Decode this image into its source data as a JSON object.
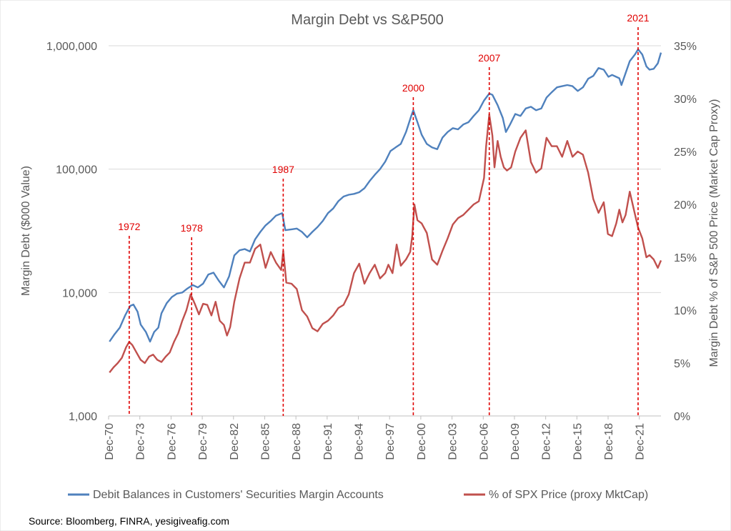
{
  "chart_data": {
    "type": "line",
    "title": "Margin Debt vs S&P500",
    "ylabel_left": "Margin Debt ($000 Value)",
    "ylabel_right": "Margin Debt % of S&P 500 Price (Market Cap Proxy)",
    "x_range": [
      1970.92,
      2024.0
    ],
    "y_left": {
      "scale": "log",
      "range": [
        1000,
        1000000
      ],
      "ticks": [
        1000,
        10000,
        100000,
        1000000
      ],
      "tick_labels": [
        "1,000",
        "10,000",
        "100,000",
        "1,000,000"
      ]
    },
    "y_right": {
      "scale": "linear",
      "range": [
        0,
        35
      ],
      "ticks": [
        0,
        5,
        10,
        15,
        20,
        25,
        30,
        35
      ],
      "tick_labels": [
        "0%",
        "5%",
        "10%",
        "15%",
        "20%",
        "25%",
        "30%",
        "35%"
      ]
    },
    "x_ticks": [
      "Dec-70",
      "Dec-73",
      "Dec-76",
      "Dec-79",
      "Dec-82",
      "Dec-85",
      "Dec-88",
      "Dec-91",
      "Dec-94",
      "Dec-97",
      "Dec-00",
      "Dec-03",
      "Dec-06",
      "Dec-09",
      "Dec-12",
      "Dec-15",
      "Dec-18",
      "Dec-21"
    ],
    "x_tick_years": [
      1970.92,
      1973.92,
      1976.92,
      1979.92,
      1982.92,
      1985.92,
      1988.92,
      1991.92,
      1994.92,
      1997.92,
      2000.92,
      2003.92,
      2006.92,
      2009.92,
      2012.92,
      2015.92,
      2018.92,
      2021.92
    ],
    "events": [
      {
        "label": "1972",
        "x": 1972.9
      },
      {
        "label": "1978",
        "x": 1978.9
      },
      {
        "label": "1987",
        "x": 1987.7
      },
      {
        "label": "2000",
        "x": 2000.2
      },
      {
        "label": "2007",
        "x": 2007.5
      },
      {
        "label": "2021",
        "x": 2021.8
      }
    ],
    "series": [
      {
        "name": "Debit Balances in Customers' Securities Margin Accounts",
        "axis": "left",
        "color": "#4f81bd",
        "x": [
          1971.0,
          1971.5,
          1972.0,
          1972.5,
          1973.0,
          1973.3,
          1973.7,
          1974.0,
          1974.5,
          1974.9,
          1975.3,
          1975.7,
          1976.0,
          1976.5,
          1977.0,
          1977.5,
          1978.0,
          1978.5,
          1979.0,
          1979.5,
          1980.0,
          1980.5,
          1981.0,
          1981.5,
          1982.0,
          1982.5,
          1983.0,
          1983.5,
          1984.0,
          1984.5,
          1985.0,
          1985.5,
          1986.0,
          1986.5,
          1987.0,
          1987.6,
          1987.9,
          1988.5,
          1989.0,
          1989.5,
          1990.0,
          1990.5,
          1991.0,
          1991.5,
          1992.0,
          1992.5,
          1993.0,
          1993.5,
          1994.0,
          1994.5,
          1995.0,
          1995.5,
          1996.0,
          1996.5,
          1997.0,
          1997.5,
          1998.0,
          1998.5,
          1999.0,
          1999.5,
          2000.0,
          2000.2,
          2000.6,
          2001.0,
          2001.5,
          2002.0,
          2002.5,
          2003.0,
          2003.5,
          2004.0,
          2004.5,
          2005.0,
          2005.5,
          2006.0,
          2006.5,
          2007.0,
          2007.5,
          2007.8,
          2008.3,
          2008.8,
          2009.1,
          2009.5,
          2010.0,
          2010.5,
          2011.0,
          2011.5,
          2012.0,
          2012.5,
          2013.0,
          2013.5,
          2014.0,
          2014.5,
          2015.0,
          2015.5,
          2016.0,
          2016.5,
          2017.0,
          2017.5,
          2018.0,
          2018.5,
          2018.95,
          2019.3,
          2019.7,
          2020.0,
          2020.2,
          2020.6,
          2021.0,
          2021.5,
          2021.8,
          2022.2,
          2022.6,
          2022.9,
          2023.3,
          2023.7,
          2024.0
        ],
        "y": [
          4000,
          4600,
          5200,
          6500,
          7800,
          8000,
          7000,
          5500,
          4800,
          4000,
          4800,
          5200,
          6800,
          8200,
          9200,
          9800,
          10000,
          10800,
          11500,
          11000,
          11800,
          14000,
          14500,
          12500,
          11000,
          13500,
          20000,
          22000,
          22500,
          21500,
          27000,
          31000,
          35000,
          38000,
          42000,
          44000,
          32000,
          32500,
          33000,
          31000,
          28000,
          31000,
          34000,
          38000,
          44000,
          48000,
          55000,
          60000,
          62000,
          63000,
          65000,
          70000,
          80000,
          90000,
          100000,
          115000,
          140000,
          150000,
          160000,
          200000,
          270000,
          300000,
          240000,
          190000,
          160000,
          150000,
          145000,
          180000,
          200000,
          215000,
          210000,
          230000,
          240000,
          270000,
          300000,
          360000,
          410000,
          400000,
          330000,
          260000,
          200000,
          230000,
          280000,
          270000,
          310000,
          320000,
          300000,
          310000,
          380000,
          420000,
          460000,
          470000,
          480000,
          470000,
          430000,
          460000,
          540000,
          570000,
          660000,
          640000,
          560000,
          580000,
          560000,
          545000,
          480000,
          600000,
          750000,
          850000,
          935000,
          850000,
          680000,
          640000,
          650000,
          720000,
          880000
        ]
      },
      {
        "name": "% of SPX Price (proxy MktCap)",
        "axis": "right",
        "color": "#c0504d",
        "x": [
          1971.0,
          1971.4,
          1971.8,
          1972.2,
          1972.6,
          1972.9,
          1973.2,
          1973.6,
          1974.0,
          1974.4,
          1974.8,
          1975.2,
          1975.6,
          1976.0,
          1976.4,
          1976.8,
          1977.2,
          1977.6,
          1978.0,
          1978.4,
          1978.8,
          1979.2,
          1979.6,
          1980.0,
          1980.4,
          1980.8,
          1981.2,
          1981.6,
          1982.0,
          1982.3,
          1982.6,
          1983.0,
          1983.5,
          1984.0,
          1984.5,
          1985.0,
          1985.5,
          1986.0,
          1986.5,
          1987.0,
          1987.5,
          1987.7,
          1988.0,
          1988.5,
          1989.0,
          1989.5,
          1990.0,
          1990.5,
          1991.0,
          1991.5,
          1992.0,
          1992.5,
          1993.0,
          1993.5,
          1994.0,
          1994.5,
          1995.0,
          1995.5,
          1996.0,
          1996.5,
          1997.0,
          1997.5,
          1997.8,
          1998.2,
          1998.6,
          1999.0,
          1999.5,
          1999.9,
          2000.1,
          2000.3,
          2000.6,
          2001.0,
          2001.5,
          2002.0,
          2002.5,
          2003.0,
          2003.5,
          2004.0,
          2004.5,
          2005.0,
          2005.5,
          2006.0,
          2006.5,
          2007.0,
          2007.2,
          2007.5,
          2007.8,
          2008.0,
          2008.3,
          2008.6,
          2008.9,
          2009.2,
          2009.6,
          2010.0,
          2010.5,
          2011.0,
          2011.5,
          2012.0,
          2012.5,
          2013.0,
          2013.5,
          2014.0,
          2014.5,
          2015.0,
          2015.5,
          2016.0,
          2016.5,
          2017.0,
          2017.5,
          2018.0,
          2018.5,
          2018.9,
          2019.3,
          2019.7,
          2020.0,
          2020.3,
          2020.6,
          2021.0,
          2021.4,
          2021.8,
          2022.2,
          2022.6,
          2022.9,
          2023.3,
          2023.7,
          2024.0
        ],
        "y": [
          4.1,
          4.6,
          5.0,
          5.5,
          6.5,
          7.0,
          6.7,
          6.0,
          5.3,
          5.0,
          5.6,
          5.8,
          5.3,
          5.1,
          5.6,
          6.0,
          7.0,
          7.8,
          9.0,
          10.0,
          11.5,
          10.6,
          9.6,
          10.6,
          10.5,
          9.5,
          10.8,
          9.0,
          8.6,
          7.6,
          8.4,
          10.8,
          13.0,
          14.5,
          14.5,
          15.8,
          16.2,
          14.0,
          15.5,
          14.5,
          13.8,
          15.6,
          12.6,
          12.5,
          12.0,
          10.0,
          9.4,
          8.3,
          8.0,
          8.7,
          9.0,
          9.5,
          10.2,
          10.5,
          11.5,
          13.5,
          14.4,
          12.5,
          13.5,
          14.3,
          13.0,
          13.5,
          14.3,
          13.5,
          16.2,
          14.2,
          14.8,
          15.5,
          17.0,
          20.0,
          18.5,
          18.2,
          17.3,
          14.8,
          14.3,
          15.6,
          16.8,
          18.1,
          18.7,
          19.0,
          19.5,
          20.0,
          20.3,
          22.5,
          25.5,
          28.5,
          26.5,
          23.5,
          26.0,
          24.5,
          23.5,
          23.2,
          23.5,
          25.0,
          26.3,
          27.0,
          24.0,
          23.0,
          23.4,
          26.3,
          25.5,
          25.5,
          24.5,
          26.0,
          24.5,
          25.0,
          24.7,
          23.0,
          20.5,
          19.2,
          20.2,
          17.2,
          17.0,
          18.2,
          19.5,
          18.3,
          19.0,
          21.2,
          19.5,
          17.8,
          16.8,
          15.0,
          15.2,
          14.8,
          14.0,
          14.7
        ]
      }
    ],
    "source": "Source: Bloomberg, FINRA, yesigiveafig.com"
  }
}
